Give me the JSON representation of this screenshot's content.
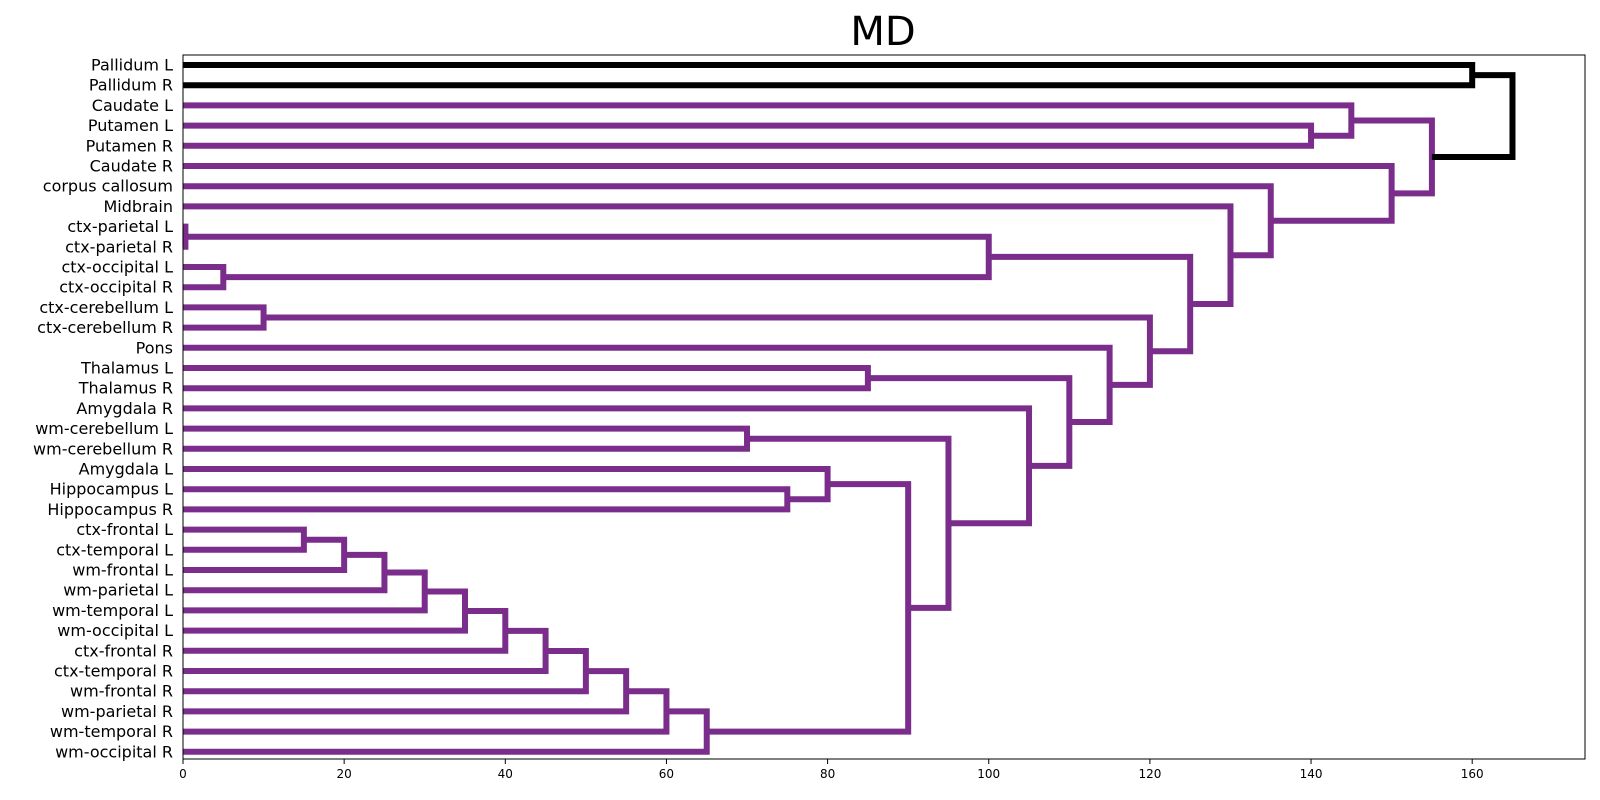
{
  "chart_data": {
    "type": "dendrogram",
    "title": "MD",
    "orientation": "horizontal",
    "xlim": [
      0,
      174
    ],
    "xticks": [
      0,
      20,
      40,
      60,
      80,
      100,
      120,
      140,
      160
    ],
    "colors": {
      "cluster": "#7b2d8b",
      "root": "#000000"
    },
    "leaves": [
      "Pallidum L",
      "Pallidum R",
      "Caudate L",
      "Putamen L",
      "Putamen R",
      "Caudate R",
      "corpus callosum",
      "Midbrain",
      "ctx-parietal L",
      "ctx-parietal R",
      "ctx-occipital L",
      "ctx-occipital R",
      "ctx-cerebellum L",
      "ctx-cerebellum R",
      "Pons",
      "Thalamus L",
      "Thalamus R",
      "Amygdala R",
      "wm-cerebellum L",
      "wm-cerebellum R",
      "Amygdala L",
      "Hippocampus L",
      "Hippocampus R",
      "ctx-frontal L",
      "ctx-temporal L",
      "wm-frontal L",
      "wm-parietal L",
      "wm-temporal L",
      "wm-occipital L",
      "ctx-frontal R",
      "ctx-temporal R",
      "wm-frontal R",
      "wm-parietal R",
      "wm-temporal R",
      "wm-occipital R"
    ],
    "merges": [
      {
        "id": "n1",
        "a": "ctx-parietal L",
        "b": "ctx-parietal R",
        "height": 0.3
      },
      {
        "id": "n2",
        "a": "ctx-occipital L",
        "b": "ctx-occipital R",
        "height": 5
      },
      {
        "id": "n3",
        "a": "ctx-cerebellum L",
        "b": "ctx-cerebellum R",
        "height": 10
      },
      {
        "id": "n4",
        "a": "ctx-frontal L",
        "b": "ctx-temporal L",
        "height": 15
      },
      {
        "id": "n5",
        "a": "n4",
        "b": "wm-frontal L",
        "height": 20
      },
      {
        "id": "n6",
        "a": "n5",
        "b": "wm-parietal L",
        "height": 25
      },
      {
        "id": "n7",
        "a": "n6",
        "b": "wm-temporal L",
        "height": 30
      },
      {
        "id": "n8",
        "a": "n7",
        "b": "wm-occipital L",
        "height": 35
      },
      {
        "id": "n9",
        "a": "n8",
        "b": "ctx-frontal R",
        "height": 40
      },
      {
        "id": "n10",
        "a": "n9",
        "b": "ctx-temporal R",
        "height": 45
      },
      {
        "id": "n11",
        "a": "n10",
        "b": "wm-frontal R",
        "height": 50
      },
      {
        "id": "n12",
        "a": "n11",
        "b": "wm-parietal R",
        "height": 55
      },
      {
        "id": "n13",
        "a": "n12",
        "b": "wm-temporal R",
        "height": 60
      },
      {
        "id": "n14",
        "a": "n13",
        "b": "wm-occipital R",
        "height": 65
      },
      {
        "id": "n15",
        "a": "wm-cerebellum L",
        "b": "wm-cerebellum R",
        "height": 70
      },
      {
        "id": "n16",
        "a": "Hippocampus L",
        "b": "Hippocampus R",
        "height": 75
      },
      {
        "id": "n17",
        "a": "Amygdala L",
        "b": "n16",
        "height": 80
      },
      {
        "id": "n18",
        "a": "Thalamus L",
        "b": "Thalamus R",
        "height": 85
      },
      {
        "id": "n19",
        "a": "n17",
        "b": "n14",
        "height": 90
      },
      {
        "id": "n20",
        "a": "n15",
        "b": "n19",
        "height": 95
      },
      {
        "id": "n21",
        "a": "n1",
        "b": "n2",
        "height": 100
      },
      {
        "id": "n22",
        "a": "Amygdala R",
        "b": "n20",
        "height": 105
      },
      {
        "id": "n23",
        "a": "n18",
        "b": "n22",
        "height": 110
      },
      {
        "id": "n24",
        "a": "Pons",
        "b": "n23",
        "height": 115
      },
      {
        "id": "n25",
        "a": "n3",
        "b": "n24",
        "height": 120
      },
      {
        "id": "n26",
        "a": "n21",
        "b": "n25",
        "height": 125
      },
      {
        "id": "n27",
        "a": "Midbrain",
        "b": "n26",
        "height": 130
      },
      {
        "id": "n28",
        "a": "corpus callosum",
        "b": "n27",
        "height": 135
      },
      {
        "id": "n29",
        "a": "Putamen L",
        "b": "Putamen R",
        "height": 140
      },
      {
        "id": "n30",
        "a": "Caudate L",
        "b": "n29",
        "height": 145
      },
      {
        "id": "n31",
        "a": "Caudate R",
        "b": "n28",
        "height": 150
      },
      {
        "id": "n32",
        "a": "n30",
        "b": "n31",
        "height": 155
      },
      {
        "id": "n33",
        "a": "Pallidum L",
        "b": "Pallidum R",
        "height": 160,
        "color": "root"
      },
      {
        "id": "n34",
        "a": "n33",
        "b": "n32",
        "height": 165,
        "color": "root"
      }
    ]
  }
}
